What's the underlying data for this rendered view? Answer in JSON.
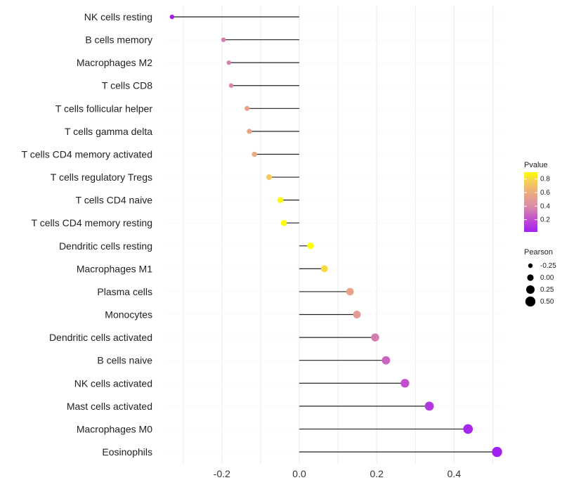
{
  "chart_data": {
    "type": "lollipop",
    "title": "",
    "xlabel": "",
    "ylabel": "",
    "xlim": [
      -0.345,
      0.53
    ],
    "xticks": [
      -0.2,
      0.0,
      0.2,
      0.4
    ],
    "xtick_labels": [
      "-0.2",
      "0.0",
      "0.2",
      "0.4"
    ],
    "grid": true,
    "categories": [
      "NK cells resting",
      "B cells memory",
      "Macrophages M2",
      "T cells CD8",
      "T cells follicular helper",
      "T cells gamma delta",
      "T cells CD4 memory activated",
      "T cells regulatory  Tregs",
      "T cells CD4 naive",
      "T cells CD4 memory resting",
      "Dendritic cells resting",
      "Macrophages M1",
      "Plasma cells",
      "Monocytes",
      "Dendritic cells activated",
      "B cells naive",
      "NK cells activated",
      "Mast cells activated",
      "Macrophages M0",
      "Eosinophils"
    ],
    "pearson": [
      -0.329,
      -0.196,
      -0.182,
      -0.176,
      -0.135,
      -0.129,
      -0.116,
      -0.078,
      -0.049,
      -0.04,
      0.029,
      0.065,
      0.131,
      0.149,
      0.196,
      0.224,
      0.273,
      0.336,
      0.436,
      0.511
    ],
    "pvalue": [
      0.02,
      0.35,
      0.36,
      0.38,
      0.55,
      0.56,
      0.6,
      0.75,
      0.88,
      0.9,
      0.9,
      0.8,
      0.55,
      0.5,
      0.35,
      0.27,
      0.2,
      0.12,
      0.05,
      0.02
    ],
    "color_legend": {
      "title": "Pvalue",
      "ticks": [
        "0.2",
        "0.4",
        "0.6",
        "0.8"
      ],
      "tick_values": [
        0.2,
        0.4,
        0.6,
        0.8
      ],
      "range": [
        0.02,
        0.9
      ],
      "low_color": "#a020f0",
      "high_color": "#ffff00"
    },
    "size_legend": {
      "title": "Pearson",
      "labels": [
        "-0.25",
        "0.00",
        "0.25",
        "0.50"
      ],
      "values": [
        -0.25,
        0,
        0.25,
        0.5
      ]
    },
    "legend_position": "right"
  }
}
